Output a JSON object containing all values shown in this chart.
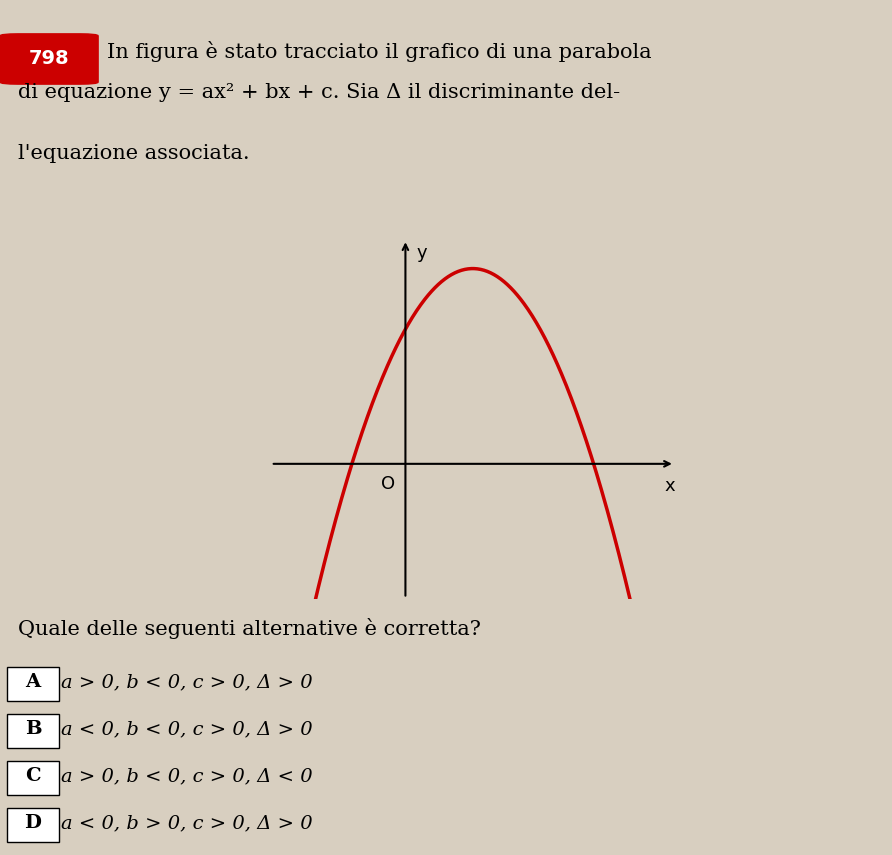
{
  "title_number": "798",
  "title_number_bg": "#cc0000",
  "title_number_color": "#ffffff",
  "question_line1": "In figura è stato tracciato il grafico di una parabola",
  "question_line2": "di equazione y = ax² + bx + c. Sia Δ il discriminante del-",
  "question_line3": "l'equazione associata.",
  "sub_question": "Quale delle seguenti alternative è corretta?",
  "options": [
    "a > 0, b < 0, c > 0, Δ > 0",
    "a < 0, b < 0, c > 0, Δ > 0",
    "a > 0, b < 0, c > 0, Δ < 0",
    "a < 0, b > 0, c > 0, Δ > 0"
  ],
  "option_labels": [
    "A",
    "B",
    "C",
    "D"
  ],
  "parabola_a": -1.2,
  "parabola_b": 1.8,
  "parabola_c": 1.5,
  "parabola_color": "#cc0000",
  "parabola_linewidth": 2.5,
  "axis_color": "#000000",
  "background_color": "#d8cfc0",
  "plot_bg": "#d8cfc0",
  "x_label": "x",
  "y_label": "y",
  "origin_label": "O",
  "x_range": [
    -1.5,
    3.0
  ],
  "y_range": [
    -1.5,
    2.5
  ],
  "solid_x_min": -1.1,
  "solid_x_max": 2.6,
  "dashed_x_left_min": -1.5,
  "dashed_x_left_max": -1.1,
  "dashed_x_right_min": 2.6,
  "dashed_x_right_max": 3.0,
  "font_size_question": 15,
  "font_size_options": 14,
  "font_size_axis": 13
}
